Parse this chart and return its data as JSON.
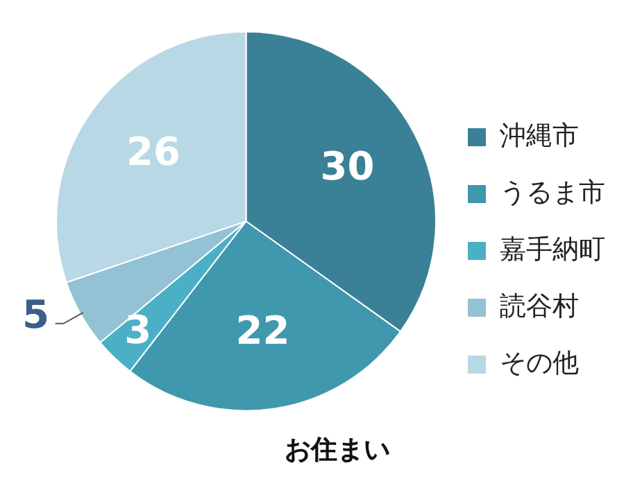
{
  "chart_data": {
    "type": "pie",
    "title": "お住まい",
    "categories": [
      "沖縄市",
      "うるま市",
      "嘉手納町",
      "読谷村",
      "その他"
    ],
    "values": [
      30,
      22,
      3,
      5,
      26
    ],
    "colors": [
      "#3a8096",
      "#3f98ad",
      "#4bb0c6",
      "#92c2d3",
      "#b9d8e5"
    ],
    "data_labels": true,
    "legend": "right"
  }
}
